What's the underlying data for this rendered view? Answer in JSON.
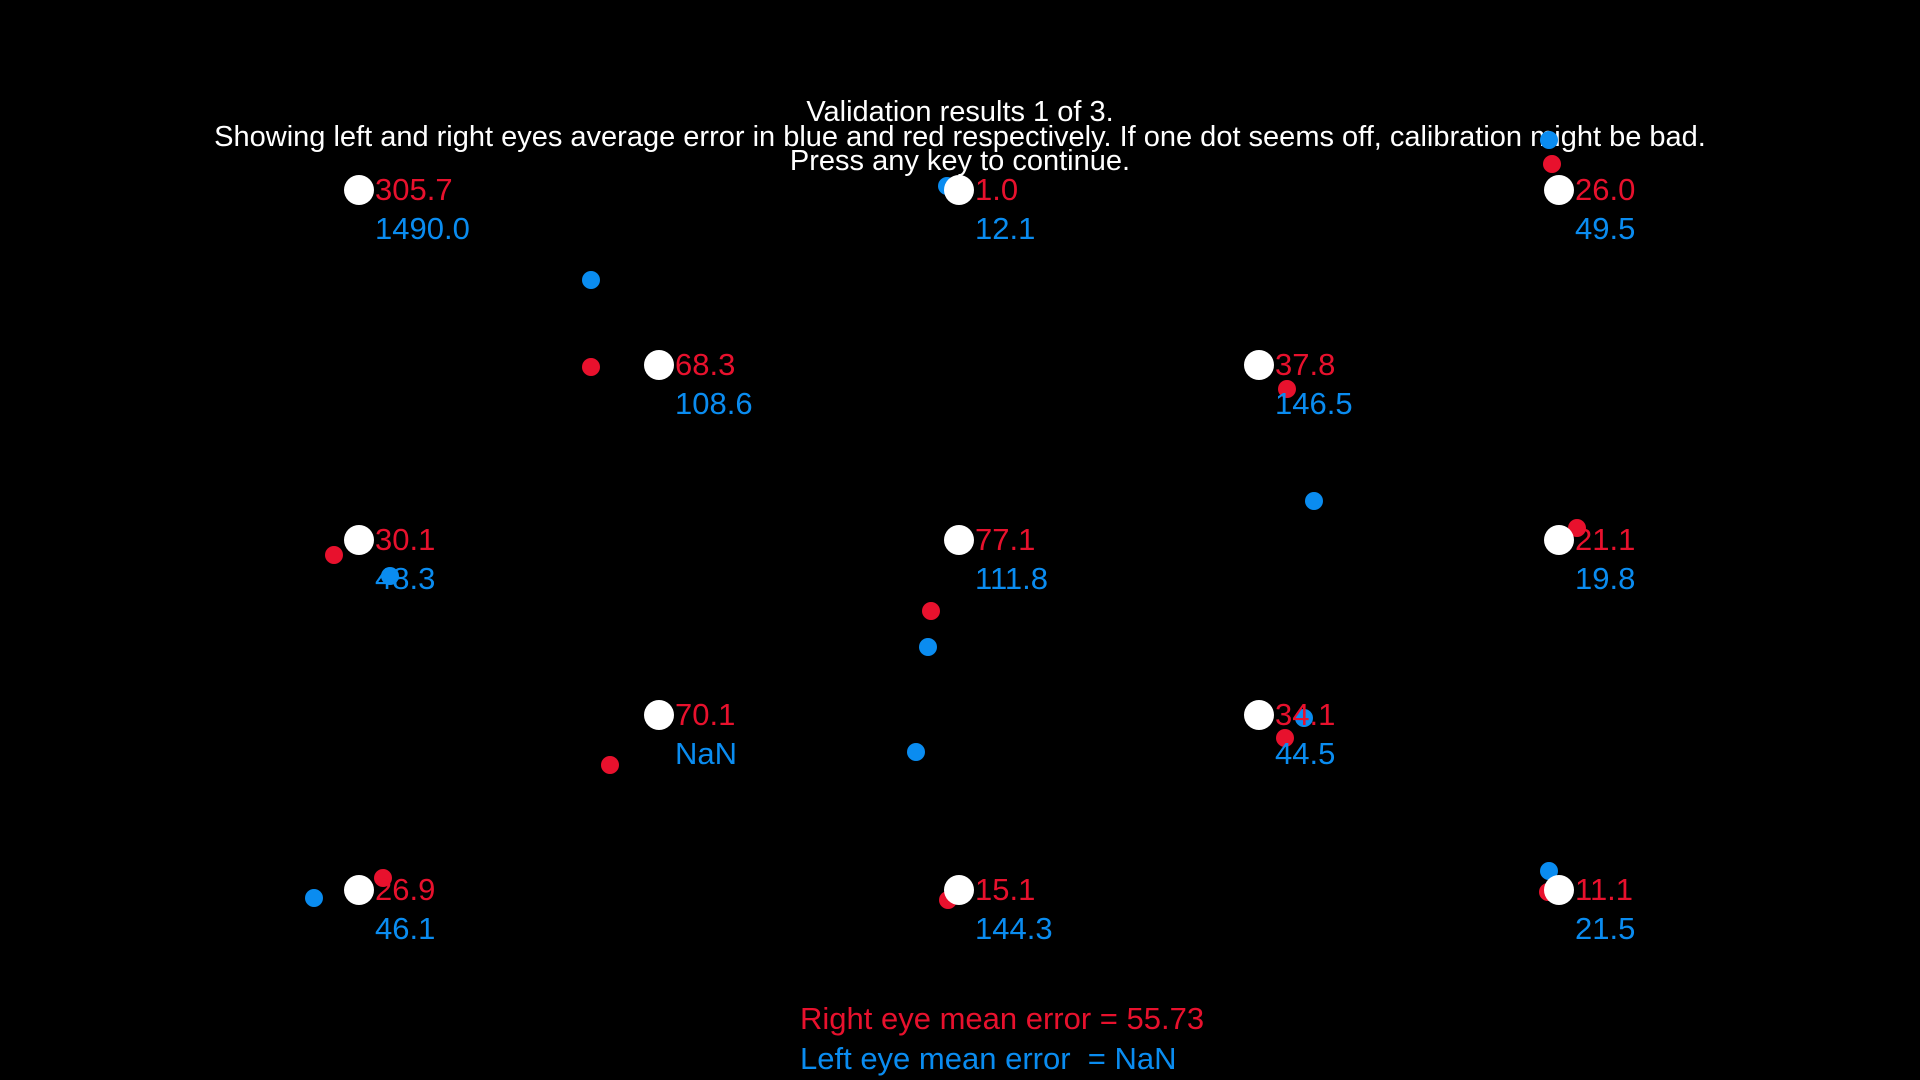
{
  "header": {
    "line1": "Validation results 1 of 3.",
    "line2": "Showing left and right eyes average error in blue and red respectively. If one dot seems off, calibration might be bad.",
    "line3": "Press any key to continue."
  },
  "colors": {
    "right_eye": "#e8112d",
    "left_eye": "#0a8cf0",
    "target": "#ffffff",
    "background": "#000000"
  },
  "points": [
    {
      "id": "p1",
      "right_error": "305.7",
      "left_error": "1490.0"
    },
    {
      "id": "p2",
      "right_error": "1.0",
      "left_error": "12.1"
    },
    {
      "id": "p3",
      "right_error": "26.0",
      "left_error": "49.5"
    },
    {
      "id": "p4",
      "right_error": "68.3",
      "left_error": "108.6"
    },
    {
      "id": "p5",
      "right_error": "37.8",
      "left_error": "146.5"
    },
    {
      "id": "p6",
      "right_error": "30.1",
      "left_error": "48.3"
    },
    {
      "id": "p7",
      "right_error": "77.1",
      "left_error": "111.8"
    },
    {
      "id": "p8",
      "right_error": "21.1",
      "left_error": "19.8"
    },
    {
      "id": "p9",
      "right_error": "70.1",
      "left_error": "NaN"
    },
    {
      "id": "p10",
      "right_error": "34.1",
      "left_error": "44.5"
    },
    {
      "id": "p11",
      "right_error": "26.9",
      "left_error": "46.1"
    },
    {
      "id": "p12",
      "right_error": "15.1",
      "left_error": "144.3"
    },
    {
      "id": "p13",
      "right_error": "11.1",
      "left_error": "21.5"
    }
  ],
  "summary": {
    "right_mean": "Right eye mean error = 55.73",
    "left_mean": "Left eye mean error  = NaN"
  }
}
